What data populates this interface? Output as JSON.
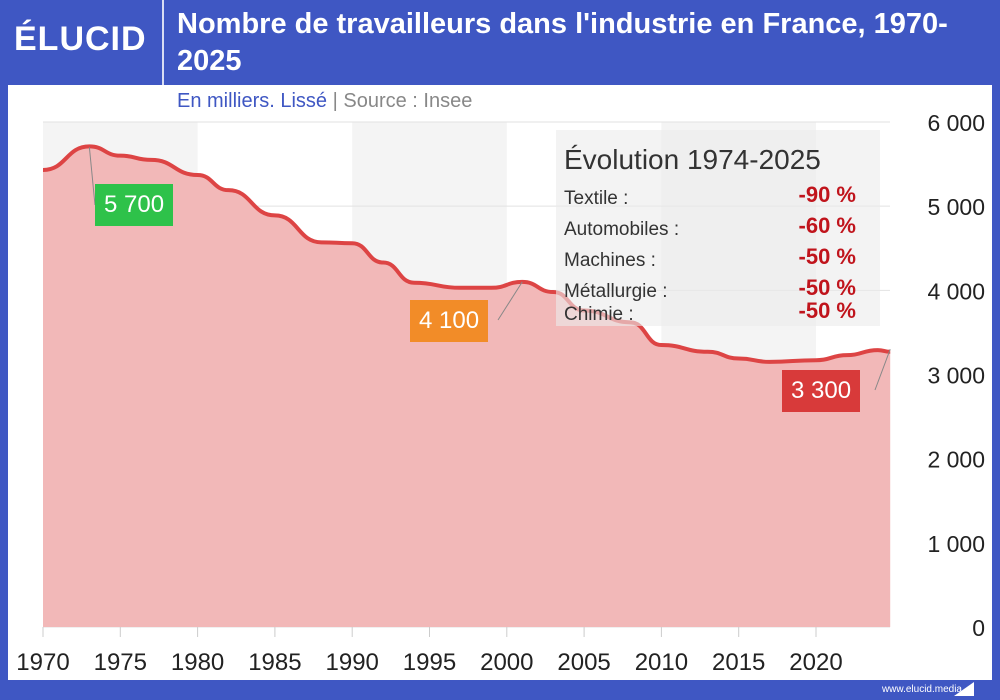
{
  "brand": {
    "logo": "ÉLUCID",
    "footer": "www.elucid.media"
  },
  "header": {
    "title": "Nombre de travailleurs dans l'industrie en France, 1970-2025",
    "subtitle_unit": "En milliers. Lissé",
    "subtitle_sep": "|",
    "subtitle_source": "Source : Insee"
  },
  "legend": {
    "title": "Évolution 1974-2025",
    "items": [
      {
        "name": "Textile :",
        "value": "-90 %"
      },
      {
        "name": "Automobiles :",
        "value": "-60 %"
      },
      {
        "name": "Machines :",
        "value": "-50 %"
      },
      {
        "name": "Métallurgie :",
        "value": "-50 %"
      },
      {
        "name": "Chimie :",
        "value": "-50 %"
      }
    ]
  },
  "chart_data": {
    "type": "area",
    "title": "Nombre de travailleurs dans l'industrie en France, 1970-2025",
    "ylabel": "En milliers",
    "xlim": [
      1970,
      2024.8
    ],
    "ylim": [
      0,
      6000
    ],
    "xticks": [
      1970,
      1975,
      1980,
      1985,
      1990,
      1995,
      2000,
      2005,
      2010,
      2015,
      2020
    ],
    "yticks": [
      0,
      1000,
      2000,
      3000,
      4000,
      5000,
      6000
    ],
    "ytick_labels": [
      "0",
      "1 000",
      "2 000",
      "3 000",
      "4 000",
      "5 000",
      "6 000"
    ],
    "grid": true,
    "colors": {
      "line": "#dd4444",
      "fill": "#f2b8b8"
    },
    "x": [
      1970,
      1973,
      1975,
      1977,
      1980,
      1982,
      1985,
      1988,
      1990,
      1992,
      1994,
      1997,
      1999,
      2001,
      2003,
      2005,
      2008,
      2010,
      2013,
      2015,
      2017,
      2020,
      2022,
      2024,
      2024.8
    ],
    "values": [
      5430,
      5710,
      5600,
      5550,
      5370,
      5190,
      4890,
      4570,
      4560,
      4330,
      4090,
      4030,
      4030,
      4100,
      3980,
      3760,
      3620,
      3350,
      3270,
      3190,
      3150,
      3170,
      3230,
      3290,
      3270
    ],
    "annotations": [
      {
        "x": 1973,
        "y": 5700,
        "text": "5 700",
        "color": "#2ec24a"
      },
      {
        "x": 2001,
        "y": 4100,
        "text": "4 100",
        "color": "#f28c28"
      },
      {
        "x": 2024.8,
        "y": 3300,
        "text": "3 300",
        "color": "#d83a3a"
      }
    ]
  }
}
